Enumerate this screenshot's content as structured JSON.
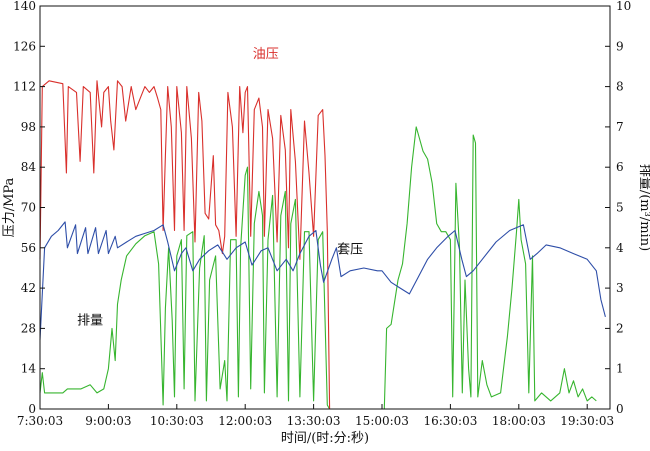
{
  "colors": {
    "oil": "#d9302c",
    "casing": "#2e4ea8",
    "rate": "#37b52f",
    "axis": "#111111"
  },
  "chart_data": {
    "type": "line",
    "title": "",
    "xlabel": "时间/(时:分:秒)",
    "ylabel_left": "压力/MPa",
    "ylabel_right": "排量/(m³/min)",
    "x_ticks": [
      "7:30:03",
      "9:00:03",
      "10:30:03",
      "12:00:03",
      "13:30:03",
      "15:00:03",
      "16:30:03",
      "18:00:03",
      "19:30:03"
    ],
    "xlim_hours": [
      7.5,
      20.0
    ],
    "ylim_left": [
      0,
      140
    ],
    "ylim_right": [
      0,
      10
    ],
    "left_ticks": [
      0,
      14,
      28,
      42,
      56,
      70,
      84,
      98,
      112,
      126,
      140
    ],
    "right_ticks": [
      0,
      1,
      2,
      3,
      4,
      5,
      6,
      7,
      8,
      9,
      10
    ],
    "grid": false,
    "series": [
      {
        "name": "油压",
        "axis": "left",
        "color": "#d9302c",
        "points": [
          [
            7.5,
            52
          ],
          [
            7.55,
            112
          ],
          [
            7.7,
            114
          ],
          [
            8.0,
            113
          ],
          [
            8.08,
            82
          ],
          [
            8.12,
            112
          ],
          [
            8.3,
            110
          ],
          [
            8.38,
            86
          ],
          [
            8.45,
            112
          ],
          [
            8.6,
            110
          ],
          [
            8.68,
            82
          ],
          [
            8.75,
            114
          ],
          [
            8.85,
            98
          ],
          [
            8.9,
            110
          ],
          [
            9.0,
            112
          ],
          [
            9.05,
            100
          ],
          [
            9.12,
            90
          ],
          [
            9.2,
            114
          ],
          [
            9.3,
            112
          ],
          [
            9.38,
            100
          ],
          [
            9.5,
            112
          ],
          [
            9.6,
            104
          ],
          [
            9.7,
            108
          ],
          [
            9.8,
            112
          ],
          [
            9.9,
            110
          ],
          [
            10.0,
            112
          ],
          [
            10.08,
            108
          ],
          [
            10.15,
            104
          ],
          [
            10.2,
            62
          ],
          [
            10.25,
            88
          ],
          [
            10.3,
            112
          ],
          [
            10.38,
            98
          ],
          [
            10.45,
            62
          ],
          [
            10.5,
            112
          ],
          [
            10.6,
            96
          ],
          [
            10.66,
            62
          ],
          [
            10.72,
            112
          ],
          [
            10.82,
            94
          ],
          [
            10.9,
            58
          ],
          [
            10.98,
            110
          ],
          [
            11.05,
            100
          ],
          [
            11.12,
            68
          ],
          [
            11.2,
            66
          ],
          [
            11.3,
            88
          ],
          [
            11.35,
            64
          ],
          [
            11.42,
            62
          ],
          [
            11.5,
            54
          ],
          [
            11.55,
            60
          ],
          [
            11.62,
            110
          ],
          [
            11.72,
            98
          ],
          [
            11.8,
            60
          ],
          [
            11.88,
            112
          ],
          [
            11.95,
            96
          ],
          [
            12.0,
            110
          ],
          [
            12.05,
            112
          ],
          [
            12.12,
            60
          ],
          [
            12.2,
            104
          ],
          [
            12.3,
            108
          ],
          [
            12.38,
            98
          ],
          [
            12.42,
            60
          ],
          [
            12.5,
            104
          ],
          [
            12.6,
            94
          ],
          [
            12.7,
            58
          ],
          [
            12.78,
            102
          ],
          [
            12.88,
            90
          ],
          [
            12.95,
            56
          ],
          [
            13.0,
            104
          ],
          [
            13.1,
            86
          ],
          [
            13.2,
            52
          ],
          [
            13.3,
            100
          ],
          [
            13.4,
            82
          ],
          [
            13.5,
            60
          ],
          [
            13.6,
            102
          ],
          [
            13.7,
            104
          ],
          [
            13.75,
            88
          ],
          [
            13.8,
            62
          ],
          [
            13.85,
            0
          ]
        ]
      },
      {
        "name": "套压",
        "axis": "left",
        "color": "#2e4ea8",
        "points": [
          [
            7.5,
            24
          ],
          [
            7.6,
            56
          ],
          [
            7.75,
            60
          ],
          [
            7.9,
            62
          ],
          [
            8.05,
            65
          ],
          [
            8.1,
            56
          ],
          [
            8.28,
            64
          ],
          [
            8.32,
            54
          ],
          [
            8.5,
            63
          ],
          [
            8.55,
            54
          ],
          [
            8.72,
            63
          ],
          [
            8.78,
            54
          ],
          [
            8.95,
            62
          ],
          [
            9.0,
            54
          ],
          [
            9.15,
            60
          ],
          [
            9.2,
            56
          ],
          [
            9.4,
            58
          ],
          [
            9.6,
            60
          ],
          [
            9.8,
            61
          ],
          [
            10.0,
            62
          ],
          [
            10.2,
            64
          ],
          [
            10.3,
            58
          ],
          [
            10.45,
            48
          ],
          [
            10.6,
            54
          ],
          [
            10.7,
            56
          ],
          [
            10.85,
            48
          ],
          [
            11.0,
            52
          ],
          [
            11.2,
            55
          ],
          [
            11.4,
            57
          ],
          [
            11.6,
            52
          ],
          [
            11.8,
            56
          ],
          [
            12.0,
            58
          ],
          [
            12.15,
            50
          ],
          [
            12.35,
            55
          ],
          [
            12.5,
            56
          ],
          [
            12.7,
            48
          ],
          [
            12.9,
            52
          ],
          [
            13.05,
            48
          ],
          [
            13.2,
            54
          ],
          [
            13.4,
            60
          ],
          [
            13.55,
            62
          ],
          [
            13.65,
            50
          ],
          [
            13.72,
            44
          ],
          [
            13.9,
            52
          ],
          [
            14.0,
            56
          ],
          [
            14.1,
            46
          ],
          [
            14.3,
            48
          ],
          [
            14.6,
            49
          ],
          [
            14.9,
            48
          ],
          [
            15.0,
            48
          ],
          [
            15.2,
            44
          ],
          [
            15.4,
            42
          ],
          [
            15.6,
            40
          ],
          [
            15.8,
            46
          ],
          [
            16.0,
            52
          ],
          [
            16.2,
            56
          ],
          [
            16.45,
            60
          ],
          [
            16.6,
            62
          ],
          [
            16.75,
            52
          ],
          [
            16.85,
            46
          ],
          [
            17.0,
            48
          ],
          [
            17.2,
            52
          ],
          [
            17.5,
            58
          ],
          [
            17.8,
            62
          ],
          [
            18.1,
            64
          ],
          [
            18.25,
            52
          ],
          [
            18.4,
            54
          ],
          [
            18.6,
            57
          ],
          [
            18.9,
            56
          ],
          [
            19.2,
            54
          ],
          [
            19.5,
            52
          ],
          [
            19.7,
            48
          ],
          [
            19.8,
            38
          ],
          [
            19.9,
            32
          ]
        ]
      },
      {
        "name": "排量",
        "axis": "right",
        "color": "#37b52f",
        "points": [
          [
            7.5,
            0.4
          ],
          [
            7.55,
            0.9
          ],
          [
            7.6,
            0.4
          ],
          [
            8.0,
            0.4
          ],
          [
            8.1,
            0.5
          ],
          [
            8.4,
            0.5
          ],
          [
            8.6,
            0.6
          ],
          [
            8.75,
            0.4
          ],
          [
            8.9,
            0.5
          ],
          [
            9.0,
            1.0
          ],
          [
            9.08,
            2.0
          ],
          [
            9.15,
            1.2
          ],
          [
            9.2,
            2.6
          ],
          [
            9.28,
            3.2
          ],
          [
            9.4,
            3.8
          ],
          [
            9.6,
            4.1
          ],
          [
            9.8,
            4.3
          ],
          [
            10.0,
            4.4
          ],
          [
            10.1,
            3.6
          ],
          [
            10.2,
            0.1
          ],
          [
            10.25,
            2.5
          ],
          [
            10.32,
            4.0
          ],
          [
            10.4,
            2.2
          ],
          [
            10.45,
            0.3
          ],
          [
            10.5,
            3.8
          ],
          [
            10.6,
            4.2
          ],
          [
            10.66,
            0.5
          ],
          [
            10.72,
            4.3
          ],
          [
            10.85,
            4.4
          ],
          [
            10.9,
            0.2
          ],
          [
            11.0,
            3.5
          ],
          [
            11.1,
            4.3
          ],
          [
            11.15,
            0.2
          ],
          [
            11.22,
            3.2
          ],
          [
            11.35,
            3.8
          ],
          [
            11.45,
            0.5
          ],
          [
            11.55,
            1.2
          ],
          [
            11.6,
            0.2
          ],
          [
            11.68,
            4.2
          ],
          [
            11.8,
            4.2
          ],
          [
            11.85,
            0.3
          ],
          [
            11.9,
            4.0
          ],
          [
            12.0,
            5.8
          ],
          [
            12.05,
            6.0
          ],
          [
            12.12,
            0.5
          ],
          [
            12.2,
            4.6
          ],
          [
            12.3,
            5.4
          ],
          [
            12.38,
            4.8
          ],
          [
            12.42,
            0.4
          ],
          [
            12.5,
            4.2
          ],
          [
            12.6,
            5.3
          ],
          [
            12.7,
            0.3
          ],
          [
            12.78,
            4.8
          ],
          [
            12.88,
            5.4
          ],
          [
            12.95,
            0.2
          ],
          [
            13.0,
            4.6
          ],
          [
            13.1,
            5.2
          ],
          [
            13.2,
            0.3
          ],
          [
            13.3,
            4.4
          ],
          [
            13.4,
            4.4
          ],
          [
            13.5,
            0.2
          ],
          [
            13.6,
            4.2
          ],
          [
            13.7,
            4.4
          ],
          [
            13.8,
            0.1
          ],
          [
            13.85,
            0.0
          ],
          [
            15.05,
            0.0
          ],
          [
            15.1,
            2.0
          ],
          [
            15.2,
            2.1
          ],
          [
            15.35,
            3.2
          ],
          [
            15.45,
            3.6
          ],
          [
            15.55,
            4.6
          ],
          [
            15.65,
            6.0
          ],
          [
            15.75,
            7.0
          ],
          [
            15.8,
            6.8
          ],
          [
            15.9,
            6.4
          ],
          [
            16.0,
            6.2
          ],
          [
            16.1,
            5.6
          ],
          [
            16.2,
            4.6
          ],
          [
            16.3,
            4.4
          ],
          [
            16.4,
            4.4
          ],
          [
            16.5,
            4.2
          ],
          [
            16.55,
            0.3
          ],
          [
            16.62,
            5.6
          ],
          [
            16.7,
            4.0
          ],
          [
            16.76,
            0.4
          ],
          [
            16.82,
            3.2
          ],
          [
            16.9,
            1.0
          ],
          [
            16.95,
            0.3
          ],
          [
            17.0,
            6.8
          ],
          [
            17.05,
            6.6
          ],
          [
            17.1,
            0.3
          ],
          [
            17.2,
            1.2
          ],
          [
            17.3,
            0.6
          ],
          [
            17.4,
            0.3
          ],
          [
            17.6,
            0.4
          ],
          [
            17.75,
            1.8
          ],
          [
            17.85,
            3.0
          ],
          [
            17.95,
            4.4
          ],
          [
            18.0,
            5.2
          ],
          [
            18.05,
            4.2
          ],
          [
            18.15,
            3.6
          ],
          [
            18.22,
            0.4
          ],
          [
            18.3,
            3.8
          ],
          [
            18.35,
            0.2
          ],
          [
            18.5,
            0.4
          ],
          [
            18.7,
            0.2
          ],
          [
            18.9,
            0.4
          ],
          [
            19.0,
            1.0
          ],
          [
            19.1,
            0.4
          ],
          [
            19.2,
            0.7
          ],
          [
            19.3,
            0.3
          ],
          [
            19.4,
            0.5
          ],
          [
            19.5,
            0.2
          ],
          [
            19.6,
            0.3
          ],
          [
            19.7,
            0.2
          ]
        ]
      }
    ],
    "annotations": [
      {
        "text": "油压",
        "series": "油压",
        "at_hours": 12.45,
        "at_value": 122,
        "axis": "left"
      },
      {
        "text": "套压",
        "series": "套压",
        "at_hours": 14.3,
        "at_value": 54,
        "axis": "left"
      },
      {
        "text": "排量",
        "series": "排量",
        "at_hours": 8.6,
        "at_value": 2.1,
        "axis": "right"
      }
    ]
  }
}
